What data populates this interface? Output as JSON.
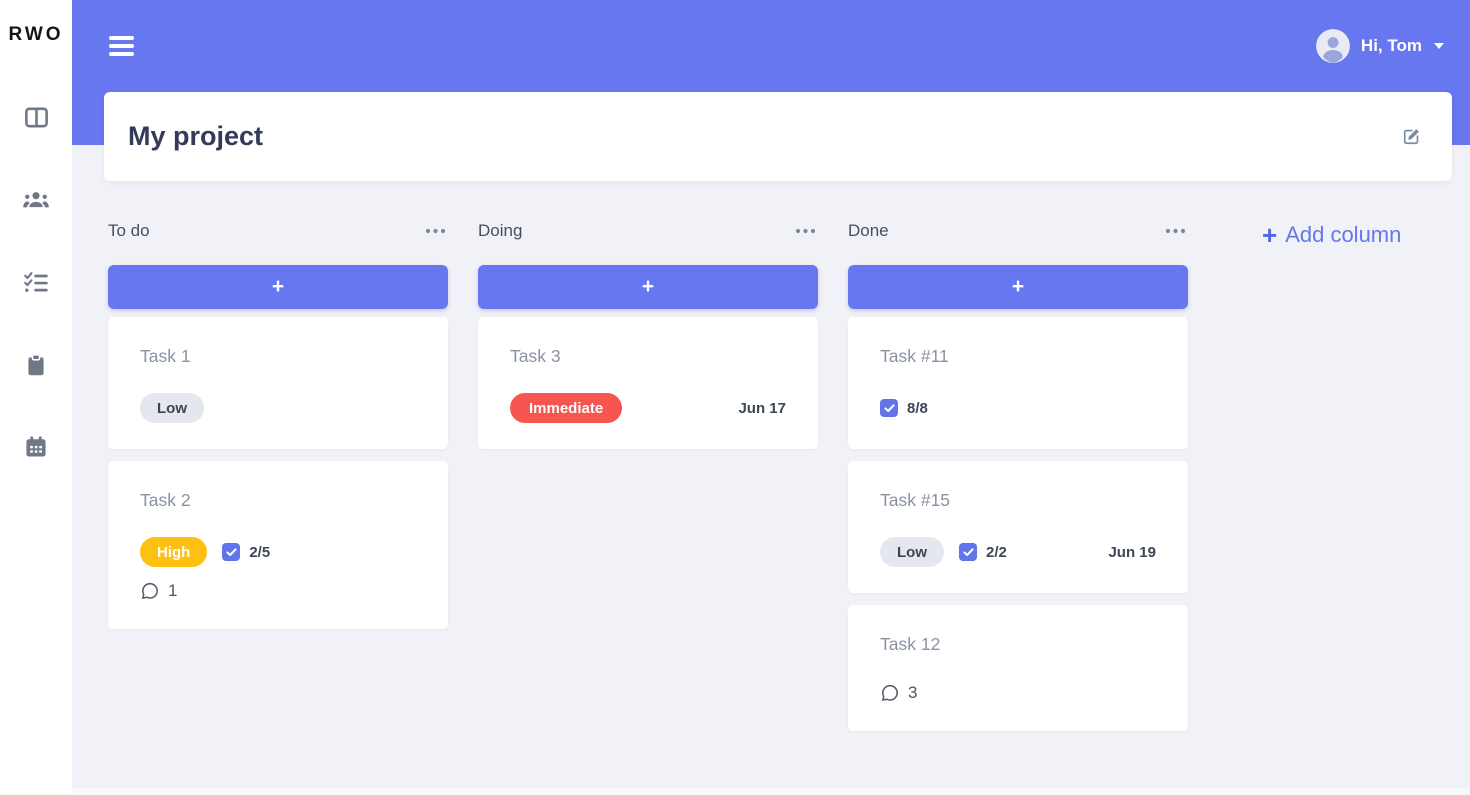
{
  "app": {
    "logo": "RWO",
    "greeting": "Hi, Tom",
    "page_title": "My project",
    "add_column_label": "Add column",
    "add_column_plus": "+",
    "add_task_label": "+"
  },
  "colors": {
    "primary": "#6777ef",
    "background": "#f1f2f7",
    "badge_low_bg": "#e4e8ee",
    "badge_high_bg": "#fec011",
    "badge_immediate_bg": "#f6564f",
    "title_dark": "#323b5c",
    "task_title_gray": "#8a92a3",
    "date_dark": "#3c4657"
  },
  "sidebar": {
    "items": [
      {
        "icon": "board-icon"
      },
      {
        "icon": "users-icon"
      },
      {
        "icon": "checklist-icon"
      },
      {
        "icon": "clipboard-icon"
      },
      {
        "icon": "calendar-icon"
      }
    ]
  },
  "header_icons": {
    "menu": "hamburger-icon",
    "avatar": "user-avatar-icon",
    "caret": "chevron-down-icon",
    "edit": "edit-icon"
  },
  "board": {
    "columns": [
      {
        "title": "To do",
        "menu_icon": "ellipsis-icon",
        "cards": [
          {
            "title": "Task 1",
            "badge": {
              "label": "Low",
              "type": "low"
            }
          },
          {
            "title": "Task 2",
            "badge": {
              "label": "High",
              "type": "high"
            },
            "checklist": "2/5",
            "comments": "1"
          }
        ]
      },
      {
        "title": "Doing",
        "menu_icon": "ellipsis-icon",
        "cards": [
          {
            "title": "Task 3",
            "badge": {
              "label": "Immediate",
              "type": "immediate"
            },
            "due_date": "Jun 17"
          }
        ]
      },
      {
        "title": "Done",
        "menu_icon": "ellipsis-icon",
        "cards": [
          {
            "title": "Task #11",
            "checklist": "8/8"
          },
          {
            "title": "Task #15",
            "badge": {
              "label": "Low",
              "type": "low"
            },
            "checklist": "2/2",
            "due_date": "Jun 19"
          },
          {
            "title": "Task 12",
            "comments": "3"
          }
        ]
      }
    ]
  }
}
